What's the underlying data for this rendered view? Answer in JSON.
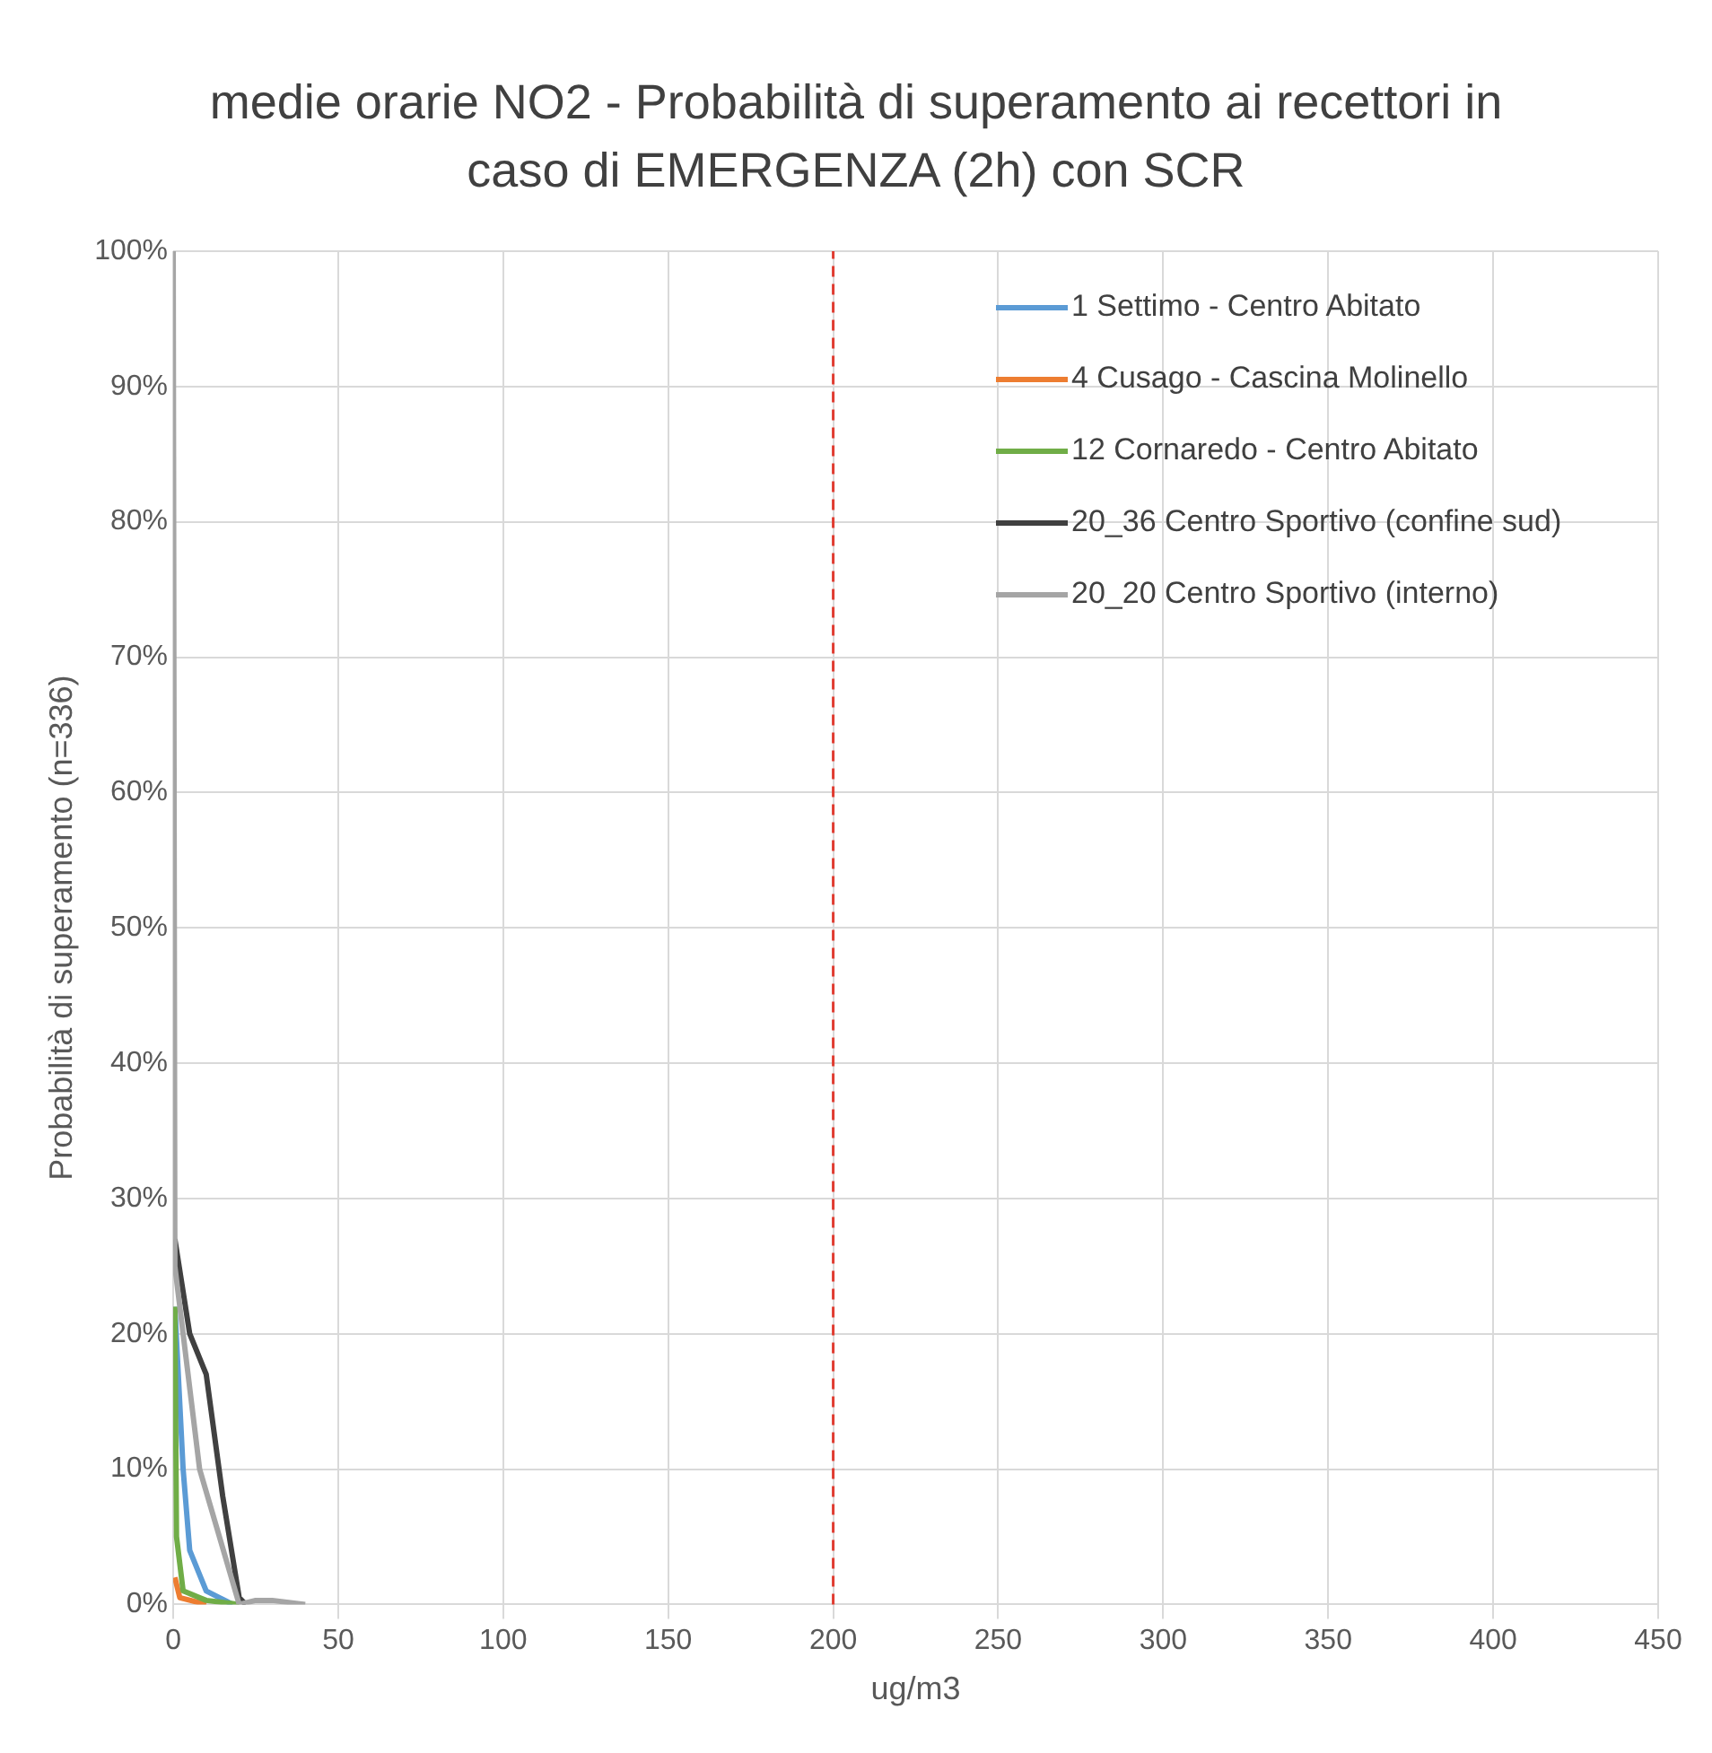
{
  "chart_data": {
    "type": "line",
    "title": "medie orarie NO2  - Probabilità di superamento ai recettori in caso di EMERGENZA (2h) con SCR",
    "xlabel": "ug/m3",
    "ylabel": "Probabilità di superamento (n=336)",
    "xlim": [
      0,
      450
    ],
    "xticks": [
      0,
      50,
      100,
      150,
      200,
      250,
      300,
      350,
      400,
      450
    ],
    "ylim": [
      0,
      100
    ],
    "yticks": [
      {
        "value": 0,
        "label": "0%"
      },
      {
        "value": 10,
        "label": "10%"
      },
      {
        "value": 20,
        "label": "20%"
      },
      {
        "value": 30,
        "label": "30%"
      },
      {
        "value": 40,
        "label": "40%"
      },
      {
        "value": 50,
        "label": "50%"
      },
      {
        "value": 60,
        "label": "60%"
      },
      {
        "value": 70,
        "label": "70%"
      },
      {
        "value": 80,
        "label": "80%"
      },
      {
        "value": 90,
        "label": "90%"
      },
      {
        "value": 100,
        "label": "100%"
      }
    ],
    "grid": true,
    "legend": "top right",
    "marker": "none",
    "line_style": "solid",
    "ref_lines": [
      {
        "axis": "x",
        "value": 200,
        "color": "#e03c31",
        "line_style": "dashed"
      }
    ],
    "series": [
      {
        "name": "1 Settimo - Centro Abitato",
        "color": "#5b9bd5",
        "x": [
          0.5,
          3,
          5,
          10,
          18
        ],
        "values": [
          22,
          10,
          4,
          1,
          0
        ]
      },
      {
        "name": "4 Cusago - Cascina Molinello",
        "color": "#ed7d31",
        "x": [
          0.5,
          2,
          10
        ],
        "values": [
          2,
          0.5,
          0
        ]
      },
      {
        "name": "12 Cornaredo - Centro Abitato",
        "color": "#70ad47",
        "x": [
          0.5,
          1,
          3,
          10,
          20
        ],
        "values": [
          22,
          5,
          1,
          0.3,
          0
        ]
      },
      {
        "name": "20_36 Centro Sportivo (confine sud)",
        "color": "#404040",
        "x": [
          0.5,
          5,
          10,
          15,
          20,
          22
        ],
        "values": [
          27,
          20,
          17,
          8,
          0.5,
          0
        ]
      },
      {
        "name": "20_20 Centro Sportivo (interno)",
        "color": "#a5a5a5",
        "x": [
          0,
          0.5,
          8,
          20,
          25,
          30,
          40
        ],
        "values": [
          100,
          25,
          10,
          0,
          0.3,
          0.3,
          0
        ]
      }
    ]
  }
}
